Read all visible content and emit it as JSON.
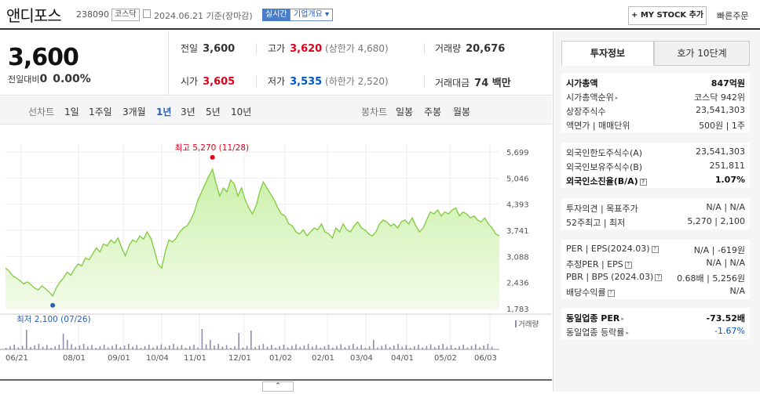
{
  "header": {
    "name": "앤디포스",
    "code": "238090",
    "market": "코스닥",
    "date": "2024.06.21",
    "date_suffix": "기준(장마감)",
    "realtime": "실시간",
    "company_overview": "기업개요",
    "mystock_btn": "+ MY STOCK 추가",
    "quick_order": "빠른주문"
  },
  "price": {
    "current": "3,600",
    "change_label": "전일대비",
    "change_val": "0",
    "change_pct": "0.00%",
    "prev_close_label": "전일",
    "prev_close": "3,600",
    "high_label": "고가",
    "high": "3,620",
    "upper_limit": "(상한가 4,680)",
    "volume_label": "거래량",
    "volume": "20,676",
    "open_label": "시가",
    "open": "3,605",
    "low_label": "저가",
    "low": "3,535",
    "lower_limit": "(하한가 2,520)",
    "amount_label": "거래대금",
    "amount": "74 백만"
  },
  "periods": {
    "line_label": "선차트",
    "items": [
      "1일",
      "1주일",
      "3개월",
      "1년",
      "3년",
      "5년",
      "10년"
    ],
    "selected": "1년",
    "candle_label": "봉차트",
    "candle_items": [
      "일봉",
      "주봉",
      "월봉"
    ]
  },
  "chart": {
    "high_label": "최고 5,270 (11/28)",
    "low_label": "최저 2,100 (07/26)",
    "volume_legend": "거래량",
    "color_line": "#7ecb3c",
    "color_fill": "#c9f0a8"
  },
  "chart_data": {
    "type": "area",
    "y_ticks": [
      "5,699",
      "5,046",
      "4,393",
      "3,741",
      "3,088",
      "2,436",
      "1,783"
    ],
    "ylim": [
      1783,
      5699
    ],
    "x_ticks": [
      "06/21",
      "08/01",
      "09/01",
      "10/04",
      "11/01",
      "12/01",
      "01/02",
      "02/01",
      "03/04",
      "04/01",
      "05/02",
      "06/03"
    ],
    "series": [
      {
        "values": [
          2800,
          2720,
          2600,
          2550,
          2480,
          2400,
          2450,
          2380,
          2300,
          2250,
          2350,
          2280,
          2200,
          2100,
          2300,
          2450,
          2550,
          2700,
          2620,
          2780,
          2900,
          2850,
          3050,
          3000,
          3150,
          3300,
          3200,
          3400,
          3350,
          3500,
          3420,
          3550,
          3300,
          3100,
          3350,
          3500,
          3450,
          3600,
          3520,
          3700,
          3550,
          3250,
          2900,
          2800,
          3200,
          3500,
          3450,
          3550,
          3700,
          3800,
          3850,
          4000,
          4200,
          4500,
          4700,
          4900,
          5100,
          5270,
          4900,
          4600,
          4800,
          4700,
          5000,
          4900,
          4600,
          4800,
          4500,
          4300,
          4150,
          4350,
          4700,
          4950,
          4800,
          4650,
          4500,
          4300,
          4150,
          4100,
          3900,
          3850,
          3700,
          3650,
          3750,
          3600,
          3700,
          3800,
          3750,
          3900,
          3700,
          3650,
          3550,
          3800,
          3700,
          3900,
          3750,
          3700,
          3850,
          3950,
          3800,
          3750,
          3650,
          3600,
          3700,
          3900,
          4000,
          3950,
          3850,
          3900,
          3800,
          3950,
          4000,
          3900,
          4050,
          3850,
          3700,
          3800,
          4000,
          4200,
          4150,
          4250,
          4100,
          4200,
          4150,
          4250,
          4300,
          4100,
          4200,
          4150,
          4050,
          4100,
          4000,
          3950,
          4050,
          3900,
          3800,
          3650,
          3600
        ]
      }
    ]
  },
  "sidebar": {
    "tab_invest": "투자정보",
    "tab_orderbook": "호가 10단계",
    "groups": [
      [
        {
          "l": "시가총액",
          "r": "847억원",
          "bold": true
        },
        {
          "l": "시가총액순위",
          "r": "코스닥 942위",
          "tri": true
        },
        {
          "l": "상장주식수",
          "r": "23,541,303"
        },
        {
          "l": "액면가 | 매매단위",
          "r": "500원 | 1주"
        }
      ],
      [
        {
          "l": "외국인한도주식수(A)",
          "r": "23,541,303"
        },
        {
          "l": "외국인보유주식수(B)",
          "r": "251,811"
        },
        {
          "l": "외국인소진율(B/A)",
          "r": "1.07%",
          "bold": true,
          "sq": true
        }
      ],
      [
        {
          "l": "투자의견 | 목표주가",
          "r": "N/A | N/A"
        },
        {
          "l": "52주최고 | 최저",
          "r": "5,270 | 2,100"
        }
      ],
      [
        {
          "l": "PER | EPS(2024.03)",
          "r": "N/A | -619원",
          "sq": true
        },
        {
          "l": "추정PER | EPS",
          "r": "N/A | N/A",
          "sq": true
        },
        {
          "l": "PBR | BPS (2024.03)",
          "r": "0.68배 | 5,256원",
          "sq": true
        },
        {
          "l": "배당수익률",
          "r": "N/A",
          "sq": true
        }
      ],
      [
        {
          "l": "동일업종 PER",
          "r": "-73.52배",
          "bold": true,
          "tri": true
        },
        {
          "l": "동일업종 등락률",
          "r": "-1.67%",
          "tri": true,
          "rcolor": "#0055cc"
        }
      ]
    ]
  }
}
